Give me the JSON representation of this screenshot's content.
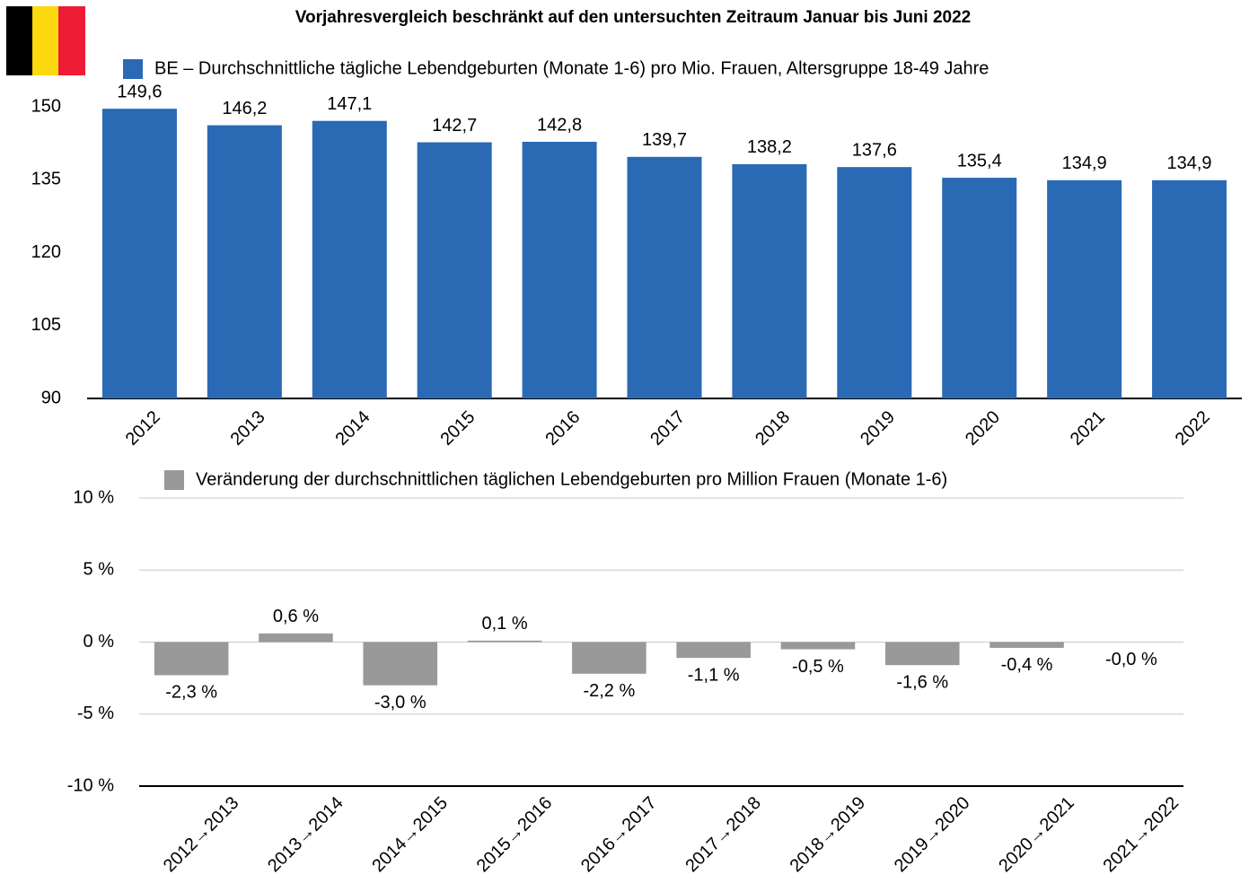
{
  "chart_data": [
    {
      "type": "bar",
      "title": "Vorjahresvergleich beschränkt auf den untersuchten Zeitraum Januar bis Juni 2022",
      "categories": [
        "2012",
        "2013",
        "2014",
        "2015",
        "2016",
        "2017",
        "2018",
        "2019",
        "2020",
        "2021",
        "2022"
      ],
      "series": [
        {
          "name": "BE – Durchschnittliche tägliche Lebendgeburten (Monate 1-6) pro Mio. Frauen, Altersgruppe 18-49 Jahre",
          "color": "#2a6ab4",
          "values": [
            149.6,
            146.2,
            147.1,
            142.7,
            142.8,
            139.7,
            138.2,
            137.6,
            135.4,
            134.9,
            134.9
          ],
          "value_labels": [
            "149,6",
            "146,2",
            "147,1",
            "142,7",
            "142,8",
            "139,7",
            "138,2",
            "137,6",
            "135,4",
            "134,9",
            "134,9"
          ]
        }
      ],
      "ylim": [
        90,
        150
      ],
      "yticks": [
        90,
        105,
        120,
        135,
        150
      ],
      "grid": false
    },
    {
      "type": "bar",
      "categories": [
        "2012→2013",
        "2013→2014",
        "2014→2015",
        "2015→2016",
        "2016→2017",
        "2017→2018",
        "2018→2019",
        "2019→2020",
        "2020→2021",
        "2021→2022"
      ],
      "series": [
        {
          "name": "Veränderung der durchschnittlichen täglichen Lebendgeburten pro Million Frauen (Monate 1-6)",
          "color": "#999999",
          "values": [
            -2.3,
            0.6,
            -3.0,
            0.1,
            -2.2,
            -1.1,
            -0.5,
            -1.6,
            -0.4,
            0
          ],
          "value_labels": [
            "-2,3 %",
            "0,6 %",
            "-3,0 %",
            "0,1 %",
            "-2,2 %",
            "-1,1 %",
            "-0,5 %",
            "-1,6 %",
            "-0,4 %",
            "-0,0 %"
          ]
        }
      ],
      "ylim": [
        -10,
        10
      ],
      "yticks": [
        {
          "value": -10,
          "label": "-10 %"
        },
        {
          "value": -5,
          "label": "-5 %"
        },
        {
          "value": 0,
          "label": "0 %"
        },
        {
          "value": 5,
          "label": "5 %"
        },
        {
          "value": 10,
          "label": "10 %"
        }
      ],
      "grid": true
    }
  ]
}
